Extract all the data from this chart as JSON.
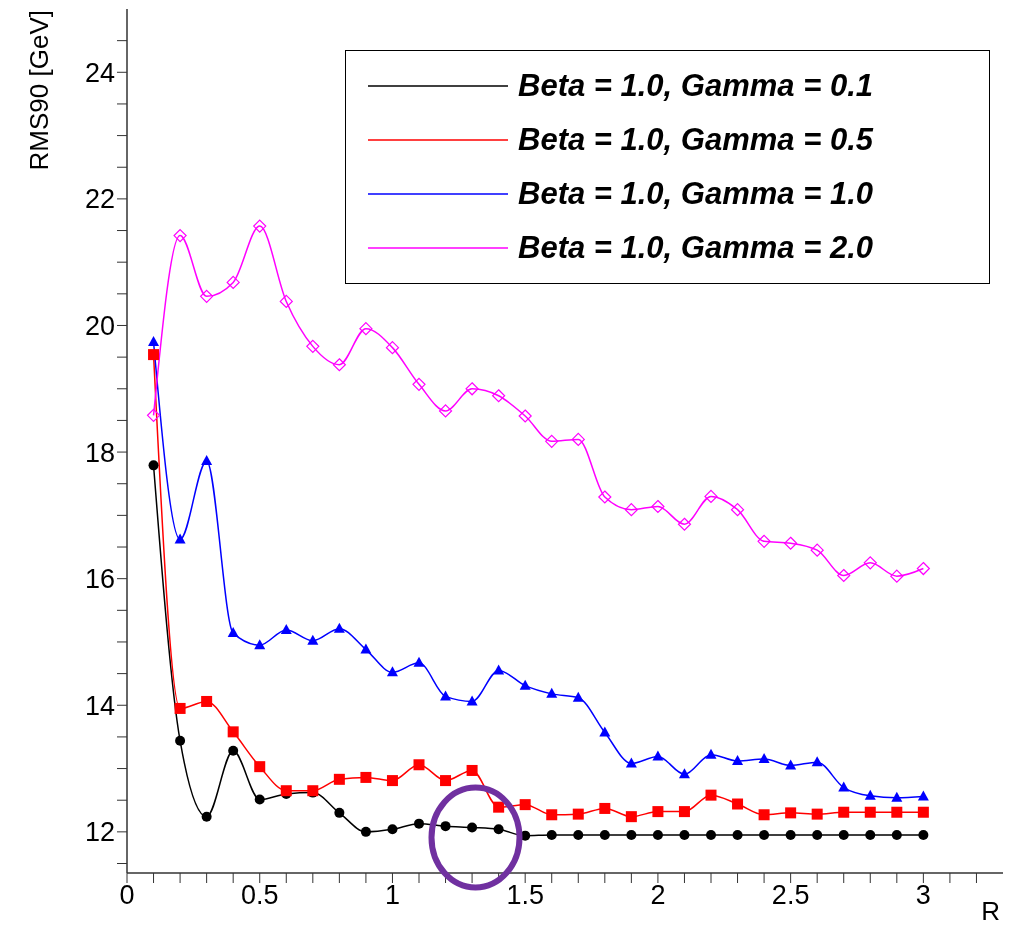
{
  "chart_data": {
    "type": "line",
    "xlabel": "R",
    "ylabel": "RMS90 [GeV]",
    "x": [
      0.1,
      0.2,
      0.3,
      0.4,
      0.5,
      0.6,
      0.7,
      0.8,
      0.9,
      1.0,
      1.1,
      1.2,
      1.3,
      1.4,
      1.5,
      1.6,
      1.7,
      1.8,
      1.9,
      2.0,
      2.1,
      2.2,
      2.3,
      2.4,
      2.5,
      2.6,
      2.7,
      2.8,
      2.9,
      3.0
    ],
    "series": [
      {
        "name": "Beta = 1.0, Gamma = 0.1",
        "color": "#000000",
        "marker": "circle",
        "values": [
          17.79,
          13.44,
          12.24,
          13.28,
          12.51,
          12.6,
          12.62,
          12.3,
          12.0,
          12.04,
          12.13,
          12.09,
          12.07,
          12.04,
          11.94,
          11.95,
          11.95,
          11.95,
          11.95,
          11.95,
          11.95,
          11.95,
          11.95,
          11.95,
          11.95,
          11.95,
          11.95,
          11.95,
          11.95,
          11.95
        ]
      },
      {
        "name": "Beta = 1.0, Gamma = 0.5",
        "color": "#ff0000",
        "marker": "square",
        "values": [
          19.54,
          13.95,
          14.06,
          13.58,
          13.03,
          12.65,
          12.65,
          12.83,
          12.86,
          12.81,
          13.06,
          12.81,
          12.97,
          12.39,
          12.43,
          12.27,
          12.28,
          12.37,
          12.24,
          12.32,
          12.32,
          12.58,
          12.44,
          12.27,
          12.3,
          12.28,
          12.31,
          12.31,
          12.31,
          12.31
        ]
      },
      {
        "name": "Beta = 1.0, Gamma = 1.0",
        "color": "#0000ff",
        "marker": "triangle",
        "values": [
          19.74,
          16.62,
          17.86,
          15.14,
          14.95,
          15.19,
          15.02,
          15.21,
          14.88,
          14.52,
          14.67,
          14.14,
          14.06,
          14.55,
          14.31,
          14.18,
          14.12,
          13.57,
          13.08,
          13.19,
          12.91,
          13.22,
          13.12,
          13.15,
          13.05,
          13.1,
          12.7,
          12.57,
          12.54,
          12.56
        ]
      },
      {
        "name": "Beta = 1.0, Gamma = 2.0",
        "color": "#ff00ff",
        "marker": "diamond",
        "values": [
          18.58,
          21.42,
          20.46,
          20.68,
          21.57,
          20.38,
          19.67,
          19.38,
          19.95,
          19.65,
          19.07,
          18.65,
          19.0,
          18.89,
          18.57,
          18.17,
          18.2,
          17.29,
          17.09,
          17.14,
          16.86,
          17.3,
          17.09,
          16.59,
          16.56,
          16.45,
          16.05,
          16.25,
          16.04,
          16.16
        ]
      }
    ],
    "xlim": [
      0,
      3.3
    ],
    "xticks": [
      0,
      {
        "value": 0.1,
        "label": null
      },
      {
        "value": 0.2,
        "label": null
      },
      {
        "value": 0.3,
        "label": null
      },
      {
        "value": 0.4,
        "label": null
      },
      {
        "value": 0.5,
        "label": "0.5"
      },
      {
        "value": 0.6,
        "label": null
      },
      {
        "value": 0.7,
        "label": null
      },
      {
        "value": 0.8,
        "label": null
      },
      {
        "value": 0.9,
        "label": null
      },
      1,
      {
        "value": 1.1,
        "label": null
      },
      {
        "value": 1.2,
        "label": null
      },
      {
        "value": 1.3,
        "label": null
      },
      {
        "value": 1.4,
        "label": null
      },
      {
        "value": 1.5,
        "label": "1.5"
      },
      {
        "value": 1.6,
        "label": null
      },
      {
        "value": 1.7,
        "label": null
      },
      {
        "value": 1.8,
        "label": null
      },
      {
        "value": 1.9,
        "label": null
      },
      2,
      {
        "value": 2.1,
        "label": null
      },
      {
        "value": 2.2,
        "label": null
      },
      {
        "value": 2.3,
        "label": null
      },
      {
        "value": 2.4,
        "label": null
      },
      {
        "value": 2.5,
        "label": "2.5"
      },
      {
        "value": 2.6,
        "label": null
      },
      {
        "value": 2.7,
        "label": null
      },
      {
        "value": 2.8,
        "label": null
      },
      {
        "value": 2.9,
        "label": null
      },
      3,
      {
        "value": 3.1,
        "label": null
      },
      {
        "value": 3.2,
        "label": null
      }
    ],
    "ylim": [
      11.35,
      25
    ],
    "yticks": [
      {
        "value": 11.5,
        "label": null
      },
      12,
      {
        "value": 12.5,
        "label": null
      },
      {
        "value": 13,
        "label": null
      },
      {
        "value": 13.5,
        "label": null
      },
      14,
      {
        "value": 14.5,
        "label": null
      },
      {
        "value": 15,
        "label": null
      },
      {
        "value": 15.5,
        "label": null
      },
      16,
      {
        "value": 16.5,
        "label": null
      },
      {
        "value": 17,
        "label": null
      },
      {
        "value": 17.5,
        "label": null
      },
      18,
      {
        "value": 18.5,
        "label": null
      },
      {
        "value": 19,
        "label": null
      },
      {
        "value": 19.5,
        "label": null
      },
      20,
      {
        "value": 20.5,
        "label": null
      },
      {
        "value": 21,
        "label": null
      },
      {
        "value": 21.5,
        "label": null
      },
      22,
      {
        "value": 22.5,
        "label": null
      },
      {
        "value": 23,
        "label": null
      },
      {
        "value": 23.5,
        "label": null
      },
      24,
      {
        "value": 24.5,
        "label": null
      }
    ],
    "legend": "top right",
    "grid": false,
    "line_style": "solid"
  }
}
